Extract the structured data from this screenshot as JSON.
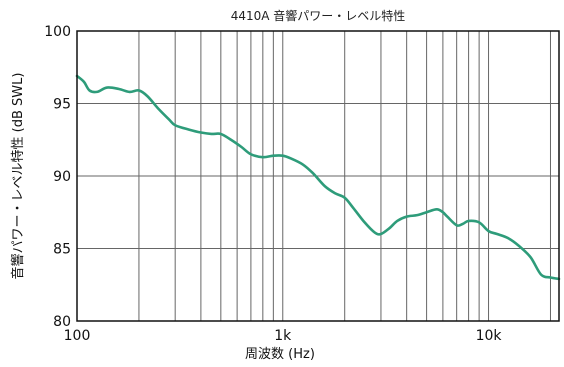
{
  "chart_data": {
    "type": "line",
    "title": "4410A 音響パワー・レベル特性",
    "xlabel": "周波数 (Hz)",
    "ylabel": "音響パワー・レベル特性 (dB SWL)",
    "x_scale": "log",
    "xlim": [
      100,
      22000
    ],
    "ylim": [
      80,
      100
    ],
    "grid": true,
    "x_ticks": [
      {
        "value": 100,
        "label": "100"
      },
      {
        "value": 1000,
        "label": "1k"
      },
      {
        "value": 10000,
        "label": "10k"
      }
    ],
    "y_ticks": [
      {
        "value": 80,
        "label": "80"
      },
      {
        "value": 85,
        "label": "85"
      },
      {
        "value": 90,
        "label": "90"
      },
      {
        "value": 95,
        "label": "95"
      },
      {
        "value": 100,
        "label": "100"
      }
    ],
    "series": [
      {
        "color": "#2e9c7a",
        "x": [
          100,
          108,
          115,
          125,
          140,
          160,
          180,
          200,
          220,
          250,
          280,
          300,
          350,
          400,
          450,
          500,
          560,
          630,
          700,
          800,
          900,
          1000,
          1100,
          1250,
          1400,
          1600,
          1800,
          2000,
          2200,
          2500,
          2800,
          3000,
          3300,
          3600,
          4000,
          4500,
          5000,
          5600,
          6000,
          6300,
          7000,
          7500,
          8000,
          9000,
          10000,
          11000,
          12500,
          14000,
          16000,
          18000,
          20000,
          22000
        ],
        "y": [
          96.9,
          96.5,
          95.9,
          95.8,
          96.1,
          96.0,
          95.8,
          95.9,
          95.5,
          94.6,
          93.9,
          93.5,
          93.2,
          93.0,
          92.9,
          92.9,
          92.5,
          92.0,
          91.5,
          91.3,
          91.4,
          91.4,
          91.2,
          90.8,
          90.2,
          89.3,
          88.8,
          88.5,
          87.8,
          86.8,
          86.1,
          86.0,
          86.4,
          86.9,
          87.2,
          87.3,
          87.5,
          87.7,
          87.5,
          87.2,
          86.6,
          86.7,
          86.9,
          86.8,
          86.2,
          86.0,
          85.7,
          85.2,
          84.4,
          83.2,
          83.0,
          82.9
        ]
      }
    ]
  }
}
